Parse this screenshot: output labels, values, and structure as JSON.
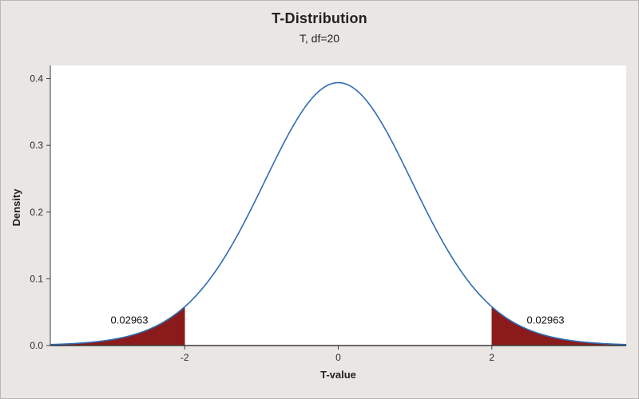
{
  "chart_data": {
    "type": "area",
    "title": "T-Distribution",
    "subtitle": "T, df=20",
    "xlabel": "T-value",
    "ylabel": "Density",
    "distribution": "t",
    "df": 20,
    "xlim": [
      -3.75,
      3.75
    ],
    "ylim": [
      0,
      0.415
    ],
    "xticks": [
      -2,
      0,
      2
    ],
    "xtick_labels": [
      "-2",
      "0",
      "2"
    ],
    "yticks": [
      0.0,
      0.1,
      0.2,
      0.3,
      0.4
    ],
    "ytick_labels": [
      "0.0",
      "0.1",
      "0.2",
      "0.3",
      "0.4"
    ],
    "peak_density": 0.394,
    "grid": false,
    "legend": "none",
    "shaded_tails": {
      "lower_cutoff": -2,
      "upper_cutoff": 2,
      "tail_probability": 0.02963
    },
    "annotations": [
      {
        "text": "0.02963",
        "x": -2.72,
        "y": 0.033
      },
      {
        "text": "0.02963",
        "x": 2.7,
        "y": 0.033
      }
    ],
    "colors": {
      "curve": "#2e6db4",
      "fill": "#8b1b1b",
      "background": "#e9e6e3",
      "plot_background": "#ffffff",
      "axis": "#3c3c3c",
      "text": "#232323"
    }
  }
}
